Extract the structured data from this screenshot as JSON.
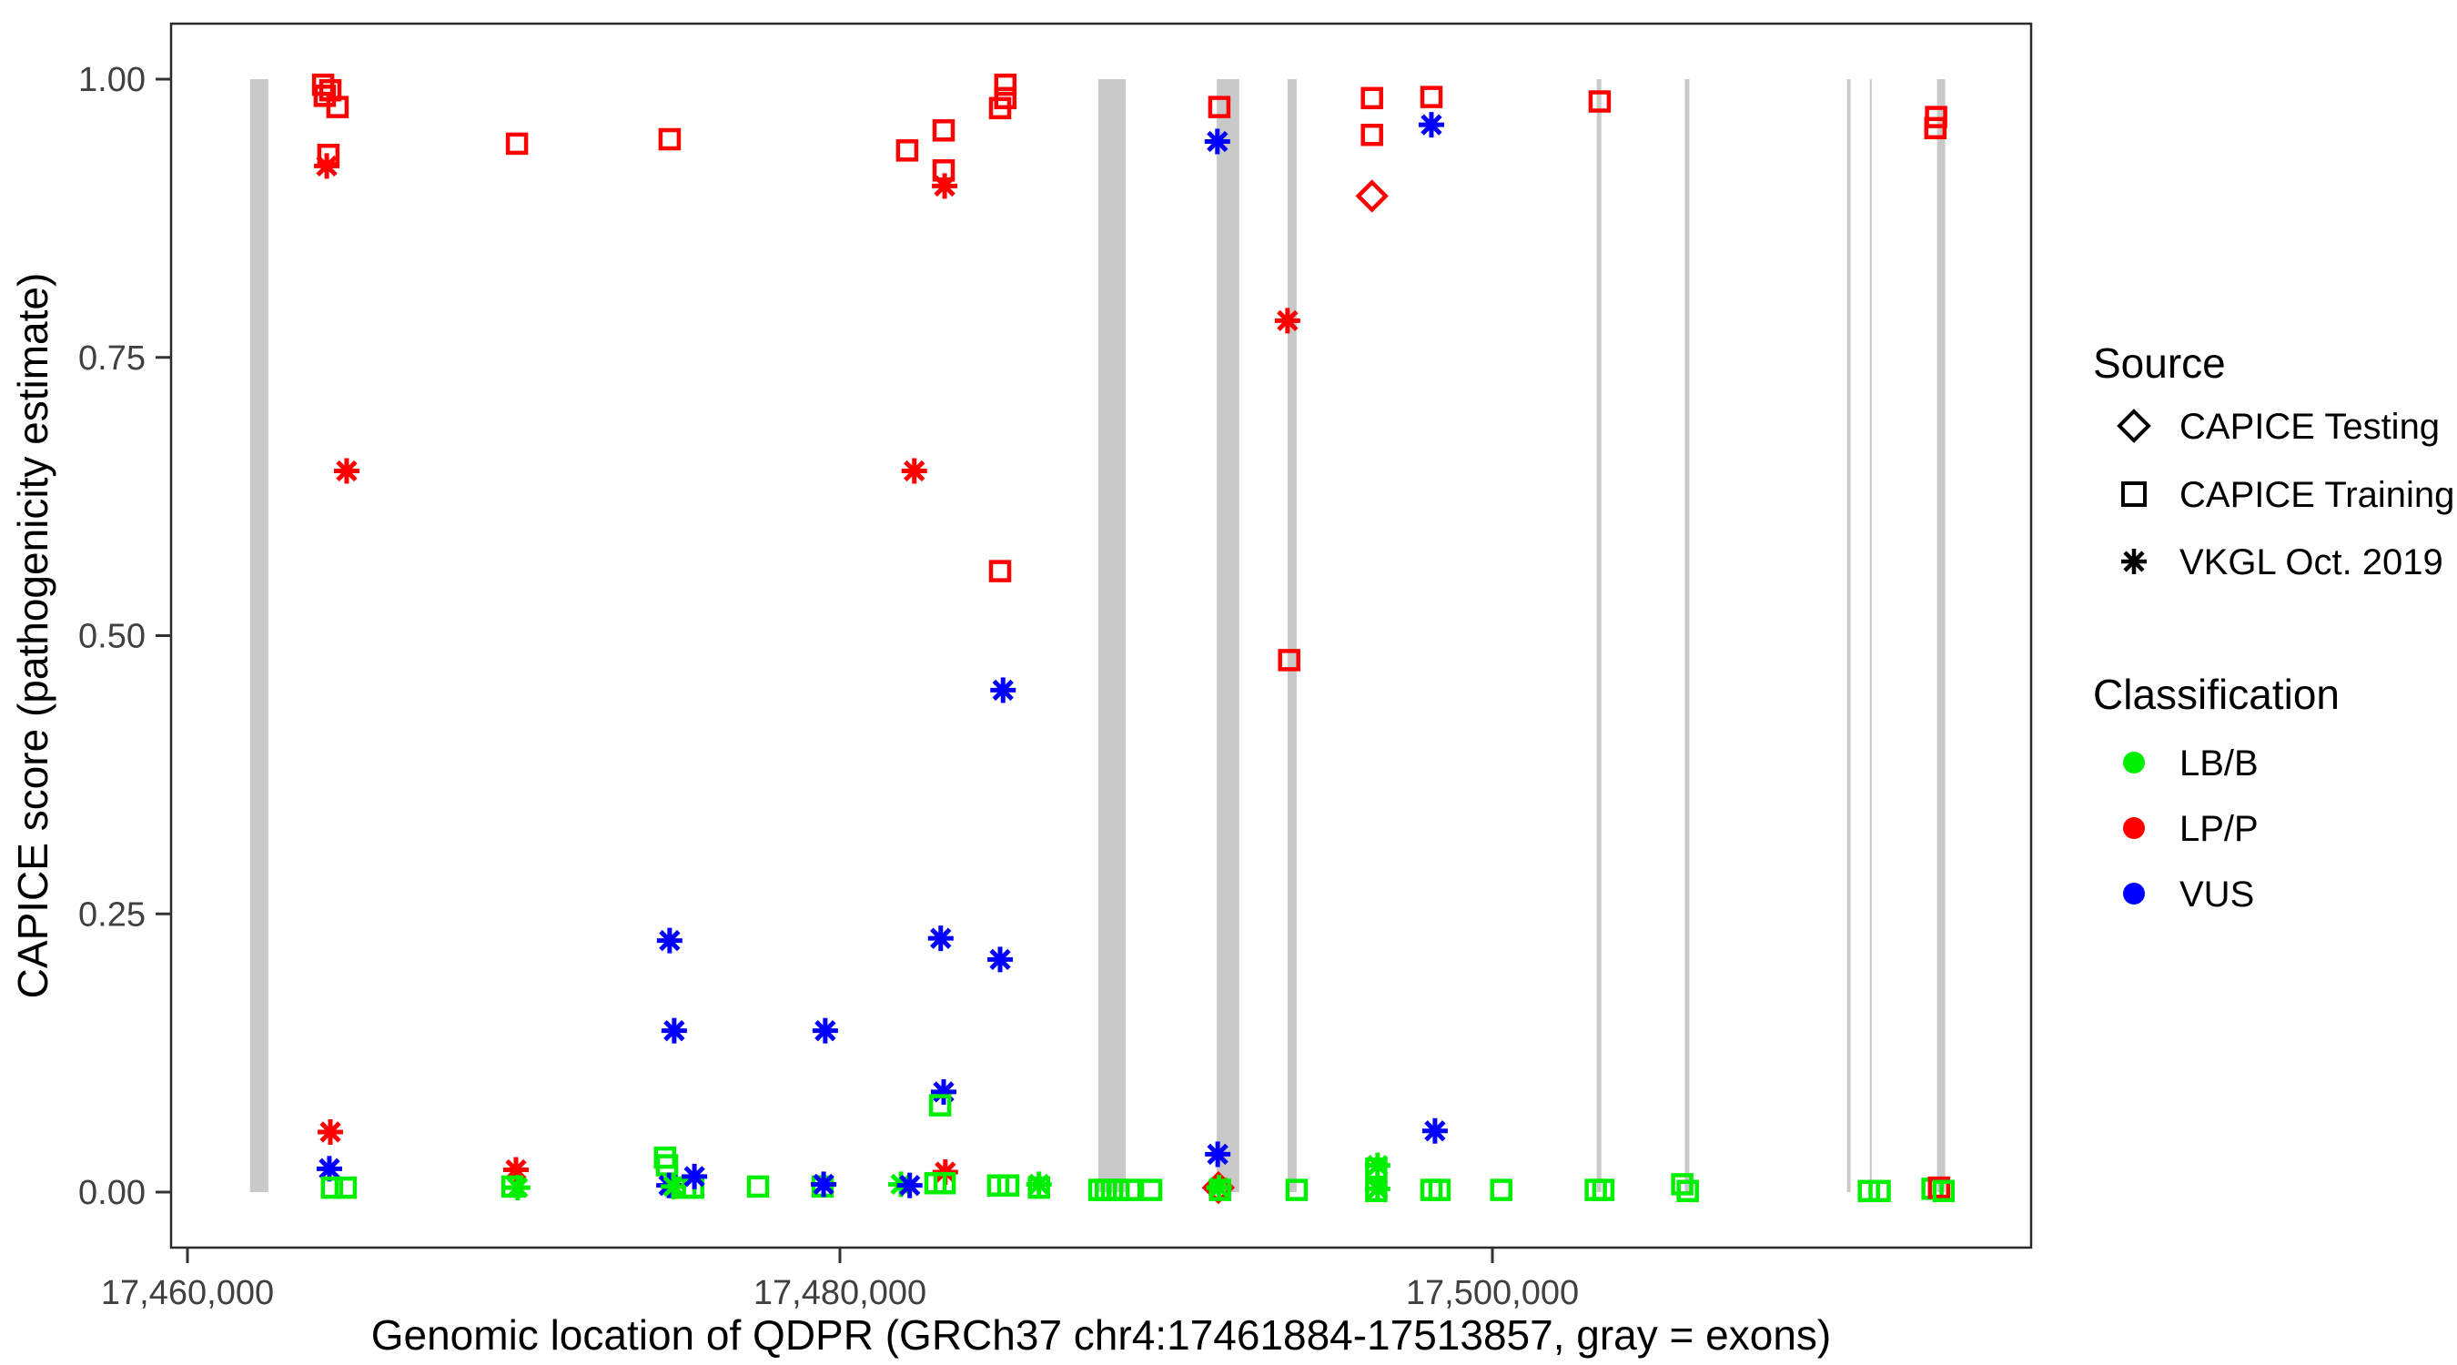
{
  "page": {
    "background": "#ffffff",
    "type": "ggplot-style scatter figure"
  },
  "chart_data": {
    "type": "scatter",
    "title": "",
    "xlabel": "Genomic location of QDPR (GRCh37 chr4:17461884-17513857, gray = exons)",
    "ylabel": "CAPICE score (pathogenicity estimate)",
    "xlim": [
      17459500,
      17516500
    ],
    "ylim": [
      -0.05,
      1.05
    ],
    "grid": false,
    "x_ticks": [
      {
        "value": 17460000,
        "label": "17,460,000"
      },
      {
        "value": 17480000,
        "label": "17,480,000"
      },
      {
        "value": 17500000,
        "label": "17,500,000"
      }
    ],
    "y_ticks": [
      {
        "value": 0.0,
        "label": "0.00"
      },
      {
        "value": 0.25,
        "label": "0.25"
      },
      {
        "value": 0.5,
        "label": "0.50"
      },
      {
        "value": 0.75,
        "label": "0.75"
      },
      {
        "value": 1.0,
        "label": "1.00"
      }
    ],
    "colors": {
      "LB/B": "#00ee00",
      "LP/P": "#ff0000",
      "VUS": "#0000ff",
      "exon": "#c9c9c9",
      "panel_border": "#2b2b2b"
    },
    "exons_note": "gray vertical bars = exons, drawn from score 0.00 to 1.00",
    "exons": [
      [
        17461920,
        17462480
      ],
      [
        17487920,
        17488760
      ],
      [
        17491550,
        17492240
      ],
      [
        17493720,
        17494000
      ],
      [
        17503200,
        17503340
      ],
      [
        17505900,
        17506040
      ],
      [
        17510870,
        17510980
      ],
      [
        17511570,
        17511620
      ],
      [
        17513630,
        17513880
      ]
    ],
    "legend": {
      "source": {
        "title": "Source",
        "items": [
          {
            "label": "CAPICE Testing",
            "symbol": "diamond"
          },
          {
            "label": "CAPICE Training",
            "symbol": "square"
          },
          {
            "label": "VKGL Oct. 2019",
            "symbol": "asterisk"
          }
        ]
      },
      "classification": {
        "title": "Classification",
        "items": [
          {
            "label": "LB/B",
            "color": "#00ee00"
          },
          {
            "label": "LP/P",
            "color": "#ff0000"
          },
          {
            "label": "VUS",
            "color": "#0000ff"
          }
        ]
      }
    },
    "points_format": [
      "x_genomic_position",
      "capice_score",
      "source",
      "classification"
    ],
    "points": [
      [
        17464160,
        0.995,
        "training",
        "LP/P"
      ],
      [
        17464380,
        0.99,
        "training",
        "LP/P"
      ],
      [
        17464210,
        0.985,
        "training",
        "LP/P"
      ],
      [
        17464600,
        0.975,
        "training",
        "LP/P"
      ],
      [
        17464320,
        0.932,
        "training",
        "LP/P"
      ],
      [
        17464270,
        0.922,
        "vkgl",
        "LP/P"
      ],
      [
        17464880,
        0.648,
        "vkgl",
        "LP/P"
      ],
      [
        17464380,
        0.054,
        "vkgl",
        "LP/P"
      ],
      [
        17464350,
        0.021,
        "vkgl",
        "VUS"
      ],
      [
        17464430,
        0.004,
        "training",
        "LB/B"
      ],
      [
        17464850,
        0.004,
        "training",
        "LB/B"
      ],
      [
        17470100,
        0.942,
        "training",
        "LP/P"
      ],
      [
        17470070,
        0.02,
        "vkgl",
        "LP/P"
      ],
      [
        17469960,
        0.005,
        "training",
        "LB/B"
      ],
      [
        17470120,
        0.004,
        "vkgl",
        "LB/B"
      ],
      [
        17474780,
        0.946,
        "training",
        "LP/P"
      ],
      [
        17474780,
        0.226,
        "vkgl",
        "VUS"
      ],
      [
        17474920,
        0.145,
        "vkgl",
        "VUS"
      ],
      [
        17474640,
        0.031,
        "training",
        "LB/B"
      ],
      [
        17474700,
        0.024,
        "training",
        "LB/B"
      ],
      [
        17474760,
        0.006,
        "vkgl",
        "VUS"
      ],
      [
        17474900,
        0.005,
        "vkgl",
        "LB/B"
      ],
      [
        17475260,
        0.004,
        "training",
        "LB/B"
      ],
      [
        17475500,
        0.004,
        "training",
        "LB/B"
      ],
      [
        17475540,
        0.014,
        "vkgl",
        "VUS"
      ],
      [
        17477490,
        0.005,
        "training",
        "LB/B"
      ],
      [
        17479550,
        0.145,
        "vkgl",
        "VUS"
      ],
      [
        17479470,
        0.005,
        "training",
        "LB/B"
      ],
      [
        17479500,
        0.007,
        "vkgl",
        "VUS"
      ],
      [
        17481870,
        0.007,
        "vkgl",
        "LB/B"
      ],
      [
        17482140,
        0.006,
        "vkgl",
        "VUS"
      ],
      [
        17482280,
        0.648,
        "vkgl",
        "LP/P"
      ],
      [
        17482060,
        0.936,
        "training",
        "LP/P"
      ],
      [
        17483180,
        0.954,
        "training",
        "LP/P"
      ],
      [
        17483180,
        0.918,
        "training",
        "LP/P"
      ],
      [
        17483210,
        0.904,
        "vkgl",
        "LP/P"
      ],
      [
        17485070,
        0.995,
        "training",
        "LP/P"
      ],
      [
        17485070,
        0.983,
        "training",
        "LP/P"
      ],
      [
        17484910,
        0.974,
        "training",
        "LP/P"
      ],
      [
        17484910,
        0.558,
        "training",
        "LP/P"
      ],
      [
        17485000,
        0.451,
        "vkgl",
        "VUS"
      ],
      [
        17484910,
        0.209,
        "vkgl",
        "VUS"
      ],
      [
        17483090,
        0.228,
        "vkgl",
        "VUS"
      ],
      [
        17483180,
        0.09,
        "vkgl",
        "VUS"
      ],
      [
        17483070,
        0.078,
        "training",
        "LB/B"
      ],
      [
        17483230,
        0.018,
        "vkgl",
        "LP/P"
      ],
      [
        17482930,
        0.008,
        "training",
        "LB/B"
      ],
      [
        17483210,
        0.008,
        "training",
        "LB/B"
      ],
      [
        17484850,
        0.006,
        "training",
        "LB/B"
      ],
      [
        17485160,
        0.006,
        "training",
        "LB/B"
      ],
      [
        17486100,
        0.007,
        "vkgl",
        "LB/B"
      ],
      [
        17486100,
        0.004,
        "training",
        "LB/B"
      ],
      [
        17487950,
        0.002,
        "training",
        "LB/B"
      ],
      [
        17488150,
        0.002,
        "training",
        "LB/B"
      ],
      [
        17488340,
        0.002,
        "training",
        "LB/B"
      ],
      [
        17488540,
        0.002,
        "training",
        "LB/B"
      ],
      [
        17488900,
        0.002,
        "training",
        "LB/B"
      ],
      [
        17489540,
        0.002,
        "training",
        "LB/B"
      ],
      [
        17491630,
        0.975,
        "training",
        "LP/P"
      ],
      [
        17491570,
        0.944,
        "vkgl",
        "VUS"
      ],
      [
        17491580,
        0.034,
        "vkgl",
        "VUS"
      ],
      [
        17491600,
        0.004,
        "testing",
        "LP/P"
      ],
      [
        17491620,
        0.004,
        "vkgl",
        "LB/B"
      ],
      [
        17491650,
        0.002,
        "training",
        "LB/B"
      ],
      [
        17493720,
        0.783,
        "vkgl",
        "LP/P"
      ],
      [
        17493770,
        0.478,
        "training",
        "LP/P"
      ],
      [
        17494000,
        0.002,
        "training",
        "LB/B"
      ],
      [
        17496310,
        0.983,
        "training",
        "LP/P"
      ],
      [
        17496310,
        0.95,
        "training",
        "LP/P"
      ],
      [
        17496310,
        0.895,
        "testing",
        "LP/P"
      ],
      [
        17496480,
        0.024,
        "vkgl",
        "LB/B"
      ],
      [
        17496440,
        0.021,
        "training",
        "LB/B"
      ],
      [
        17496480,
        0.003,
        "vkgl",
        "LB/B"
      ],
      [
        17496440,
        0.001,
        "training",
        "LB/B"
      ],
      [
        17498130,
        0.984,
        "training",
        "LP/P"
      ],
      [
        17498130,
        0.959,
        "vkgl",
        "VUS"
      ],
      [
        17498240,
        0.055,
        "vkgl",
        "VUS"
      ],
      [
        17498130,
        0.002,
        "training",
        "LB/B"
      ],
      [
        17498380,
        0.002,
        "training",
        "LB/B"
      ],
      [
        17500270,
        0.002,
        "training",
        "LB/B"
      ],
      [
        17503170,
        0.002,
        "training",
        "LB/B"
      ],
      [
        17503400,
        0.002,
        "training",
        "LB/B"
      ],
      [
        17503290,
        0.98,
        "training",
        "LP/P"
      ],
      [
        17505820,
        0.007,
        "training",
        "LB/B"
      ],
      [
        17505990,
        0.001,
        "training",
        "LB/B"
      ],
      [
        17511540,
        0.001,
        "training",
        "LB/B"
      ],
      [
        17511870,
        0.001,
        "training",
        "LB/B"
      ],
      [
        17513490,
        0.003,
        "training",
        "LB/B"
      ],
      [
        17513690,
        0.004,
        "training",
        "LP/P"
      ],
      [
        17513830,
        0.001,
        "training",
        "LB/B"
      ],
      [
        17513600,
        0.966,
        "training",
        "LP/P"
      ],
      [
        17513580,
        0.956,
        "training",
        "LP/P"
      ]
    ]
  }
}
